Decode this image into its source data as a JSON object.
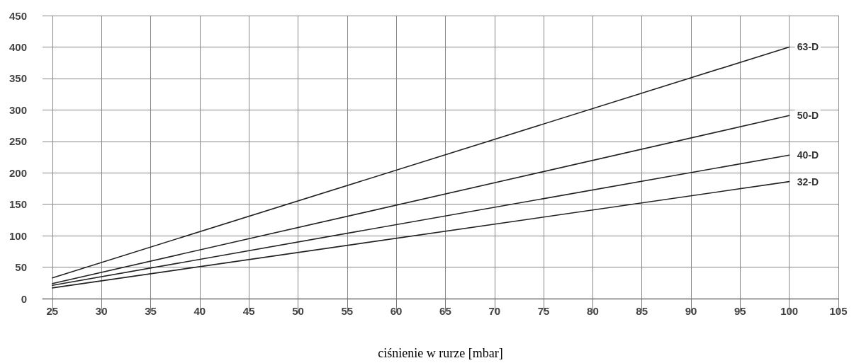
{
  "chart_data": {
    "type": "line",
    "xlabel": "ciśnienie w rurze [mbar]",
    "x": [
      25,
      100
    ],
    "series": [
      {
        "name": "63-D",
        "color": "#222222",
        "values": [
          33,
          400
        ]
      },
      {
        "name": "50-D",
        "color": "#222222",
        "values": [
          24,
          291
        ]
      },
      {
        "name": "40-D",
        "color": "#222222",
        "values": [
          21,
          228
        ]
      },
      {
        "name": "32-D",
        "color": "#222222",
        "values": [
          17,
          186
        ]
      }
    ],
    "xlim": [
      24,
      105
    ],
    "xticks": [
      25,
      30,
      35,
      40,
      45,
      50,
      55,
      60,
      65,
      70,
      75,
      80,
      85,
      90,
      95,
      100,
      105
    ],
    "ylim": [
      0,
      450
    ],
    "yticks": [
      0,
      50,
      100,
      150,
      200,
      250,
      300,
      350,
      400,
      450
    ],
    "grid": true,
    "legend": false,
    "marker": "none",
    "line_style": "solid"
  }
}
